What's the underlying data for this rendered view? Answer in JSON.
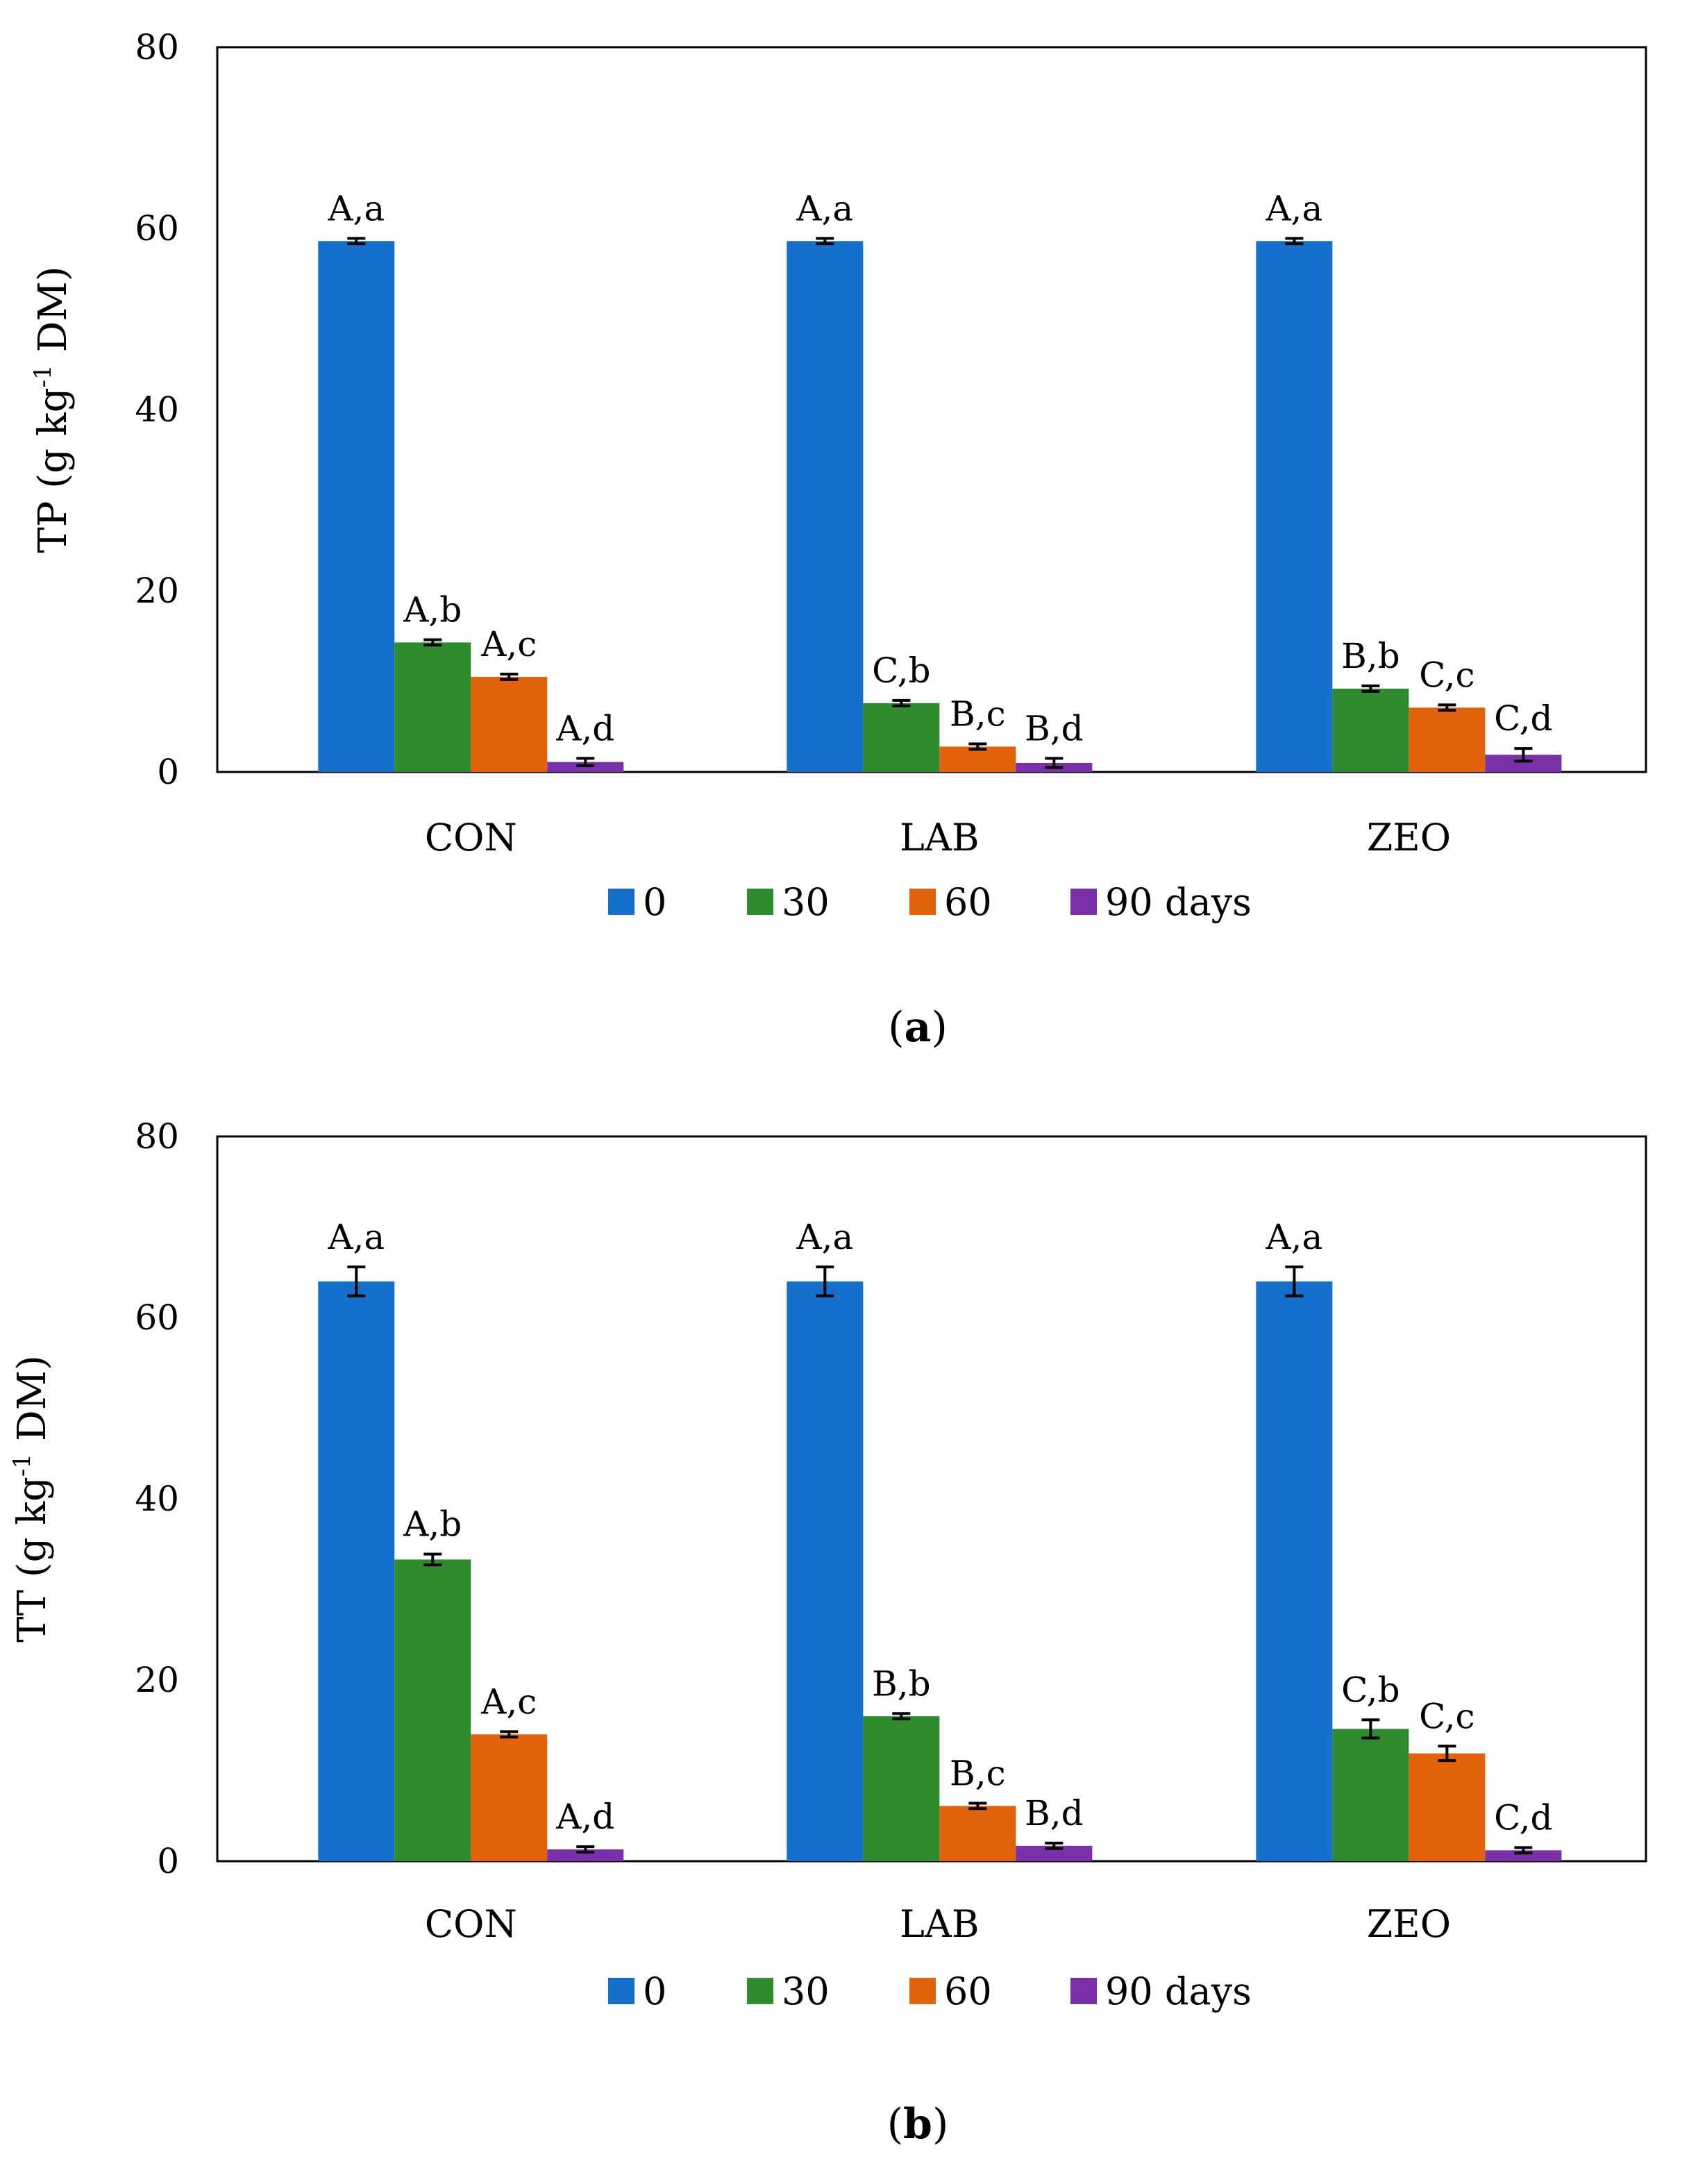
{
  "chart_data": [
    {
      "type": "bar",
      "panel_label": "a",
      "ylabel": "TP (g kg",
      "ylabel_sup": "-1",
      "ylabel_tail": " DM)",
      "ylim": [
        0,
        80
      ],
      "yticks": [
        "0",
        "20",
        "40",
        "60",
        "80"
      ],
      "categories": [
        "CON",
        "LAB",
        "ZEO"
      ],
      "legend": [
        "0",
        "30",
        "60",
        "90 days"
      ],
      "series": [
        {
          "name": "0",
          "color": "#1570CB",
          "values": [
            58.6,
            58.6,
            58.6
          ],
          "errors": [
            0.3,
            0.3,
            0.3
          ],
          "labels": [
            "A,a",
            "A,a",
            "A,a"
          ]
        },
        {
          "name": "30",
          "color": "#2E8B2E",
          "values": [
            14.3,
            7.6,
            9.2
          ],
          "errors": [
            0.3,
            0.3,
            0.3
          ],
          "labels": [
            "A,b",
            "C,b",
            "B,b"
          ]
        },
        {
          "name": "60",
          "color": "#E1620A",
          "values": [
            10.5,
            2.8,
            7.1
          ],
          "errors": [
            0.3,
            0.3,
            0.3
          ],
          "labels": [
            "A,c",
            "B,c",
            "C,c"
          ]
        },
        {
          "name": "90 days",
          "color": "#7A30A8",
          "values": [
            1.1,
            1.0,
            1.9
          ],
          "errors": [
            0.4,
            0.5,
            0.7
          ],
          "labels": [
            "A,d",
            "B,d",
            "C,d"
          ]
        }
      ]
    },
    {
      "type": "bar",
      "panel_label": "b",
      "ylabel": "TT (g kg",
      "ylabel_sup": "-1",
      "ylabel_tail": " DM)",
      "ylim": [
        0,
        80
      ],
      "yticks": [
        "0",
        "20",
        "40",
        "60",
        "80"
      ],
      "categories": [
        "CON",
        "LAB",
        "ZEO"
      ],
      "legend": [
        "0",
        "30",
        "60",
        "90 days"
      ],
      "series": [
        {
          "name": "0",
          "color": "#1570CB",
          "values": [
            64.0,
            64.0,
            64.0
          ],
          "errors": [
            1.6,
            1.6,
            1.6
          ],
          "labels": [
            "A,a",
            "A,a",
            "A,a"
          ]
        },
        {
          "name": "30",
          "color": "#2E8B2E",
          "values": [
            33.3,
            16.0,
            14.6
          ],
          "errors": [
            0.6,
            0.3,
            1.0
          ],
          "labels": [
            "A,b",
            "B,b",
            "C,b"
          ]
        },
        {
          "name": "60",
          "color": "#E1620A",
          "values": [
            14.0,
            6.1,
            11.9
          ],
          "errors": [
            0.3,
            0.3,
            0.8
          ],
          "labels": [
            "A,c",
            "B,c",
            "C,c"
          ]
        },
        {
          "name": "90 days",
          "color": "#7A30A8",
          "values": [
            1.3,
            1.7,
            1.2
          ],
          "errors": [
            0.3,
            0.3,
            0.3
          ],
          "labels": [
            "A,d",
            "B,d",
            "C,d"
          ]
        }
      ]
    }
  ]
}
